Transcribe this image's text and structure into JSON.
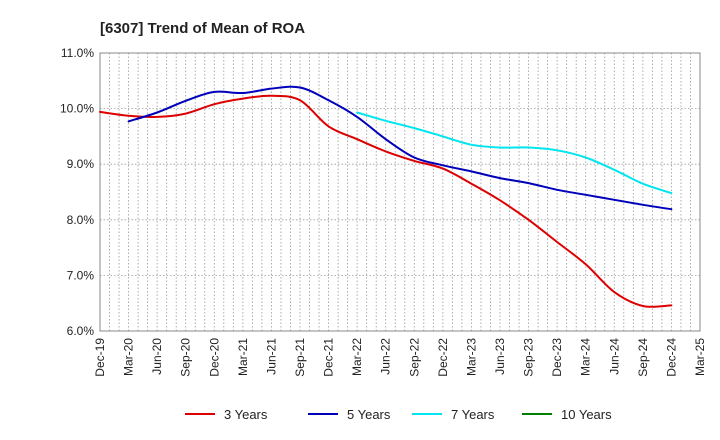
{
  "chart_data": {
    "type": "line",
    "title": "[6307]  Trend of Mean of ROA",
    "xlabel": "",
    "ylabel": "",
    "ylim": [
      6.0,
      11.0
    ],
    "yticks": [
      6.0,
      7.0,
      8.0,
      9.0,
      10.0,
      11.0
    ],
    "ytick_labels": [
      "6.0%",
      "7.0%",
      "8.0%",
      "9.0%",
      "10.0%",
      "11.0%"
    ],
    "categories": [
      "Dec-19",
      "Mar-20",
      "Jun-20",
      "Sep-20",
      "Dec-20",
      "Mar-21",
      "Jun-21",
      "Sep-21",
      "Dec-21",
      "Mar-22",
      "Jun-22",
      "Sep-22",
      "Dec-22",
      "Mar-23",
      "Jun-23",
      "Sep-23",
      "Dec-23",
      "Mar-24",
      "Jun-24",
      "Sep-24",
      "Dec-24",
      "Mar-25"
    ],
    "grid": true,
    "legend_position": "bottom",
    "series": [
      {
        "name": "3 Years",
        "color": "#dd0000",
        "values": [
          9.94,
          9.87,
          9.85,
          9.91,
          10.08,
          10.18,
          10.23,
          10.15,
          9.68,
          9.45,
          9.23,
          9.06,
          8.92,
          8.65,
          8.35,
          8.0,
          7.6,
          7.2,
          6.7,
          6.45,
          6.46,
          null
        ]
      },
      {
        "name": "5 Years",
        "color": "#0000bb",
        "values": [
          null,
          9.77,
          9.93,
          10.14,
          10.3,
          10.28,
          10.36,
          10.38,
          10.15,
          9.85,
          9.45,
          9.12,
          8.98,
          8.87,
          8.75,
          8.66,
          8.54,
          8.45,
          8.36,
          8.27,
          8.19,
          null
        ]
      },
      {
        "name": "7 Years",
        "color": "#00e5ee",
        "values": [
          null,
          null,
          null,
          null,
          null,
          null,
          null,
          null,
          null,
          9.93,
          9.78,
          9.65,
          9.5,
          9.35,
          9.3,
          9.3,
          9.25,
          9.12,
          8.9,
          8.65,
          8.48,
          null
        ]
      },
      {
        "name": "10 Years",
        "color": "#008000",
        "values": [
          null,
          null,
          null,
          null,
          null,
          null,
          null,
          null,
          null,
          null,
          null,
          null,
          null,
          null,
          null,
          null,
          null,
          null,
          null,
          null,
          null,
          null
        ]
      }
    ]
  }
}
